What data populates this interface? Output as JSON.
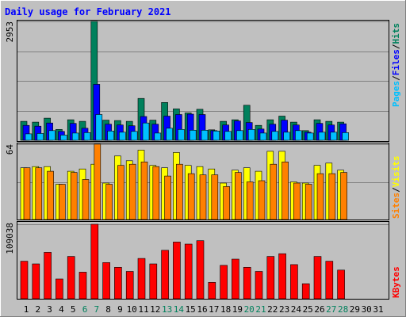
{
  "colors": {
    "background": "#c0c0c0",
    "title": "#0000ff",
    "hits": "#00805c",
    "files": "#0000ff",
    "pages": "#00c0ff",
    "visits": "#ffff00",
    "sites": "#ff8000",
    "kbytes": "#ff0000",
    "weekend_label": "#00805c"
  },
  "chart_data": {
    "type": "bar",
    "title": "Daily usage for February 2021",
    "categories": [
      "1",
      "2",
      "3",
      "4",
      "5",
      "6",
      "7",
      "8",
      "9",
      "10",
      "11",
      "12",
      "13",
      "14",
      "15",
      "16",
      "17",
      "18",
      "19",
      "20",
      "21",
      "22",
      "23",
      "24",
      "25",
      "26",
      "27",
      "28",
      "29",
      "30",
      "31"
    ],
    "weekend_days": [
      "6",
      "7",
      "13",
      "14",
      "20",
      "21",
      "27",
      "28"
    ],
    "panels": [
      {
        "name": "hits-files-pages",
        "ymax_label": "2953",
        "ymax": 2953,
        "legend": [
          "Pages",
          "/",
          "Files",
          "/",
          "Hits"
        ],
        "series": [
          {
            "name": "Hits",
            "values": [
              470,
              450,
              550,
              270,
              510,
              470,
              2953,
              500,
              490,
              470,
              1040,
              500,
              940,
              780,
              680,
              770,
              260,
              470,
              510,
              870,
              370,
              510,
              600,
              450,
              240,
              510,
              470,
              450,
              0,
              0,
              0
            ]
          },
          {
            "name": "Files",
            "values": [
              370,
              350,
              430,
              220,
              420,
              300,
              1390,
              400,
              380,
              360,
              590,
              400,
              600,
              640,
              650,
              640,
              240,
              380,
              480,
              440,
              280,
              400,
              500,
              380,
              200,
              420,
              380,
              410,
              0,
              0,
              0
            ]
          },
          {
            "name": "Pages",
            "values": [
              160,
              170,
              240,
              130,
              180,
              190,
              640,
              230,
              200,
              220,
              430,
              180,
              300,
              270,
              250,
              250,
              230,
              220,
              240,
              270,
              180,
              220,
              200,
              240,
              180,
              200,
              200,
              190,
              0,
              0,
              0
            ]
          }
        ]
      },
      {
        "name": "visits-sites",
        "ymax_label": "64",
        "ymax": 64,
        "legend": [
          "Sites",
          "/",
          "Visits"
        ],
        "series": [
          {
            "name": "Visits",
            "values": [
              44,
              45,
              45,
              30,
              41,
              43,
              47,
              31,
              54,
              50,
              59,
              46,
              44,
              57,
              46,
              45,
              43,
              31,
              42,
              44,
              41,
              58,
              58,
              32,
              31,
              46,
              48,
              42,
              0,
              0,
              0
            ]
          },
          {
            "name": "Sites",
            "values": [
              44,
              44,
              41,
              30,
              40,
              34,
              64,
              30,
              46,
              47,
              49,
              45,
              37,
              47,
              39,
              38,
              38,
              28,
              40,
              32,
              33,
              47,
              49,
              31,
              30,
              39,
              39,
              40,
              0,
              0,
              0
            ]
          }
        ]
      },
      {
        "name": "kbytes",
        "ymax_label": "109038",
        "ymax": 109038,
        "legend": [
          "KBytes"
        ],
        "series": [
          {
            "name": "KBytes",
            "values": [
              55000,
              51000,
              68000,
              29000,
              62000,
              39000,
              109038,
              53000,
              46000,
              40000,
              59000,
              51000,
              71000,
              83000,
              80000,
              85000,
              24000,
              49000,
              58000,
              46000,
              40000,
              62000,
              66000,
              50000,
              22000,
              62000,
              55000,
              42000,
              0,
              0,
              0
            ]
          }
        ]
      }
    ]
  }
}
